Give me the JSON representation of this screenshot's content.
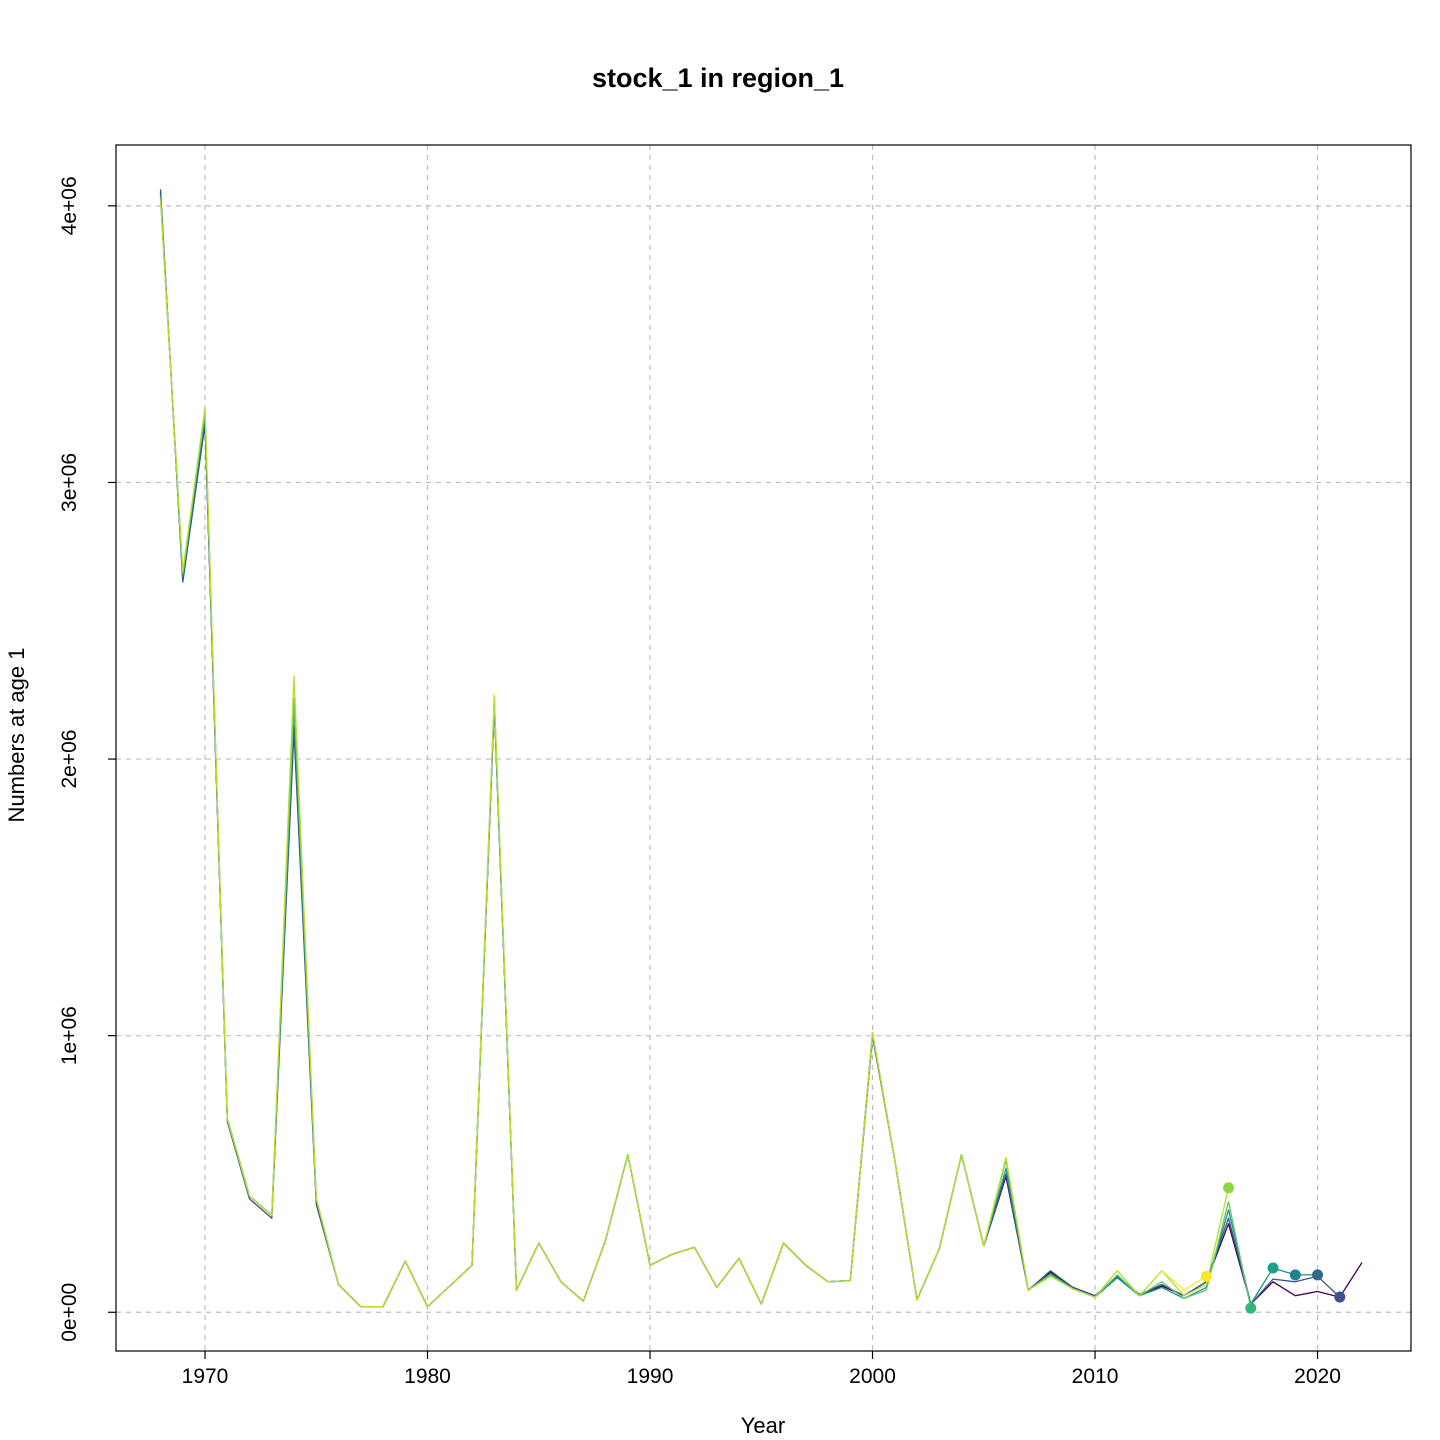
{
  "chart_data": {
    "type": "line",
    "title": "stock_1 in region_1",
    "xlabel": "Year",
    "ylabel": "Numbers at age 1",
    "xlim": [
      1966,
      2024.2
    ],
    "ylim": [
      -140000,
      4220000
    ],
    "xticks": [
      1970,
      1980,
      1990,
      2000,
      2010,
      2020
    ],
    "yticks": [
      0,
      1000000,
      2000000,
      3000000,
      4000000
    ],
    "ytick_labels": [
      "0e+00",
      "1e+06",
      "2e+06",
      "3e+06",
      "4e+06"
    ],
    "grid": true,
    "legend": "none",
    "series": [
      {
        "color": "#440154",
        "x": [
          1968,
          1969,
          1970,
          1971,
          1972,
          1973,
          1974,
          1975,
          1976,
          1977,
          1978,
          1979,
          1980,
          1981,
          1982,
          1983,
          1984,
          1985,
          1986,
          1987,
          1988,
          1989,
          1990,
          1991,
          1992,
          1993,
          1994,
          1995,
          1996,
          1997,
          1998,
          1999,
          2000,
          2001,
          2002,
          2003,
          2004,
          2005,
          2006,
          2007,
          2008,
          2009,
          2010,
          2011,
          2012,
          2013,
          2014,
          2015,
          2016,
          2017,
          2018,
          2019,
          2020,
          2021,
          2022
        ],
        "y": [
          4050000,
          2650000,
          3220000,
          700000,
          420000,
          350000,
          2150000,
          400000,
          100000,
          20000,
          20000,
          185000,
          20000,
          95000,
          170000,
          2200000,
          80000,
          250000,
          110000,
          40000,
          260000,
          570000,
          170000,
          210000,
          235000,
          90000,
          195000,
          30000,
          250000,
          170000,
          110000,
          115000,
          1000000,
          550000,
          45000,
          230000,
          570000,
          240000,
          490000,
          80000,
          145000,
          90000,
          60000,
          130000,
          60000,
          95000,
          60000,
          110000,
          320000,
          30000,
          110000,
          60000,
          75000,
          55000,
          180000
        ]
      },
      {
        "color": "#3b528b",
        "x": [
          1968,
          1969,
          1970,
          1971,
          1972,
          1973,
          1974,
          1975,
          1976,
          1977,
          1978,
          1979,
          1980,
          1981,
          1982,
          1983,
          1984,
          1985,
          1986,
          1987,
          1988,
          1989,
          1990,
          1991,
          1992,
          1993,
          1994,
          1995,
          1996,
          1997,
          1998,
          1999,
          2000,
          2001,
          2002,
          2003,
          2004,
          2005,
          2006,
          2007,
          2008,
          2009,
          2010,
          2011,
          2012,
          2013,
          2014,
          2015,
          2016,
          2017,
          2018,
          2019,
          2020,
          2021
        ],
        "y": [
          4060000,
          2640000,
          3210000,
          690000,
          410000,
          340000,
          2100000,
          390000,
          100000,
          20000,
          20000,
          185000,
          20000,
          95000,
          170000,
          2190000,
          80000,
          250000,
          110000,
          40000,
          260000,
          570000,
          170000,
          210000,
          235000,
          90000,
          195000,
          30000,
          250000,
          170000,
          110000,
          115000,
          1000000,
          550000,
          45000,
          230000,
          570000,
          240000,
          500000,
          80000,
          150000,
          90000,
          60000,
          130000,
          65000,
          100000,
          60000,
          110000,
          340000,
          30000,
          120000,
          110000,
          130000,
          55000
        ]
      },
      {
        "color": "#21908d",
        "x": [
          1968,
          1969,
          1970,
          1971,
          1972,
          1973,
          1974,
          1975,
          1976,
          1977,
          1978,
          1979,
          1980,
          1981,
          1982,
          1983,
          1984,
          1985,
          1986,
          1987,
          1988,
          1989,
          1990,
          1991,
          1992,
          1993,
          1994,
          1995,
          1996,
          1997,
          1998,
          1999,
          2000,
          2001,
          2002,
          2003,
          2004,
          2005,
          2006,
          2007,
          2008,
          2009,
          2010,
          2011,
          2012,
          2013,
          2014,
          2015,
          2016,
          2017,
          2018,
          2019,
          2020
        ],
        "y": [
          4040000,
          2660000,
          3240000,
          700000,
          420000,
          350000,
          2180000,
          410000,
          100000,
          20000,
          20000,
          185000,
          20000,
          95000,
          170000,
          2210000,
          80000,
          250000,
          110000,
          40000,
          260000,
          570000,
          170000,
          210000,
          235000,
          90000,
          195000,
          30000,
          250000,
          170000,
          110000,
          115000,
          1010000,
          550000,
          45000,
          230000,
          570000,
          240000,
          520000,
          80000,
          140000,
          85000,
          55000,
          125000,
          60000,
          90000,
          50000,
          90000,
          370000,
          30000,
          160000,
          135000,
          135000
        ]
      },
      {
        "color": "#5ec962",
        "x": [
          1968,
          1969,
          1970,
          1971,
          1972,
          1973,
          1974,
          1975,
          1976,
          1977,
          1978,
          1979,
          1980,
          1981,
          1982,
          1983,
          1984,
          1985,
          1986,
          1987,
          1988,
          1989,
          1990,
          1991,
          1992,
          1993,
          1994,
          1995,
          1996,
          1997,
          1998,
          1999,
          2000,
          2001,
          2002,
          2003,
          2004,
          2005,
          2006,
          2007,
          2008,
          2009,
          2010,
          2011,
          2012,
          2013,
          2014,
          2015,
          2016,
          2017
        ],
        "y": [
          4030000,
          2670000,
          3260000,
          700000,
          420000,
          350000,
          2220000,
          410000,
          100000,
          20000,
          20000,
          185000,
          20000,
          95000,
          170000,
          2220000,
          80000,
          250000,
          110000,
          40000,
          260000,
          570000,
          170000,
          210000,
          235000,
          90000,
          195000,
          30000,
          250000,
          170000,
          110000,
          115000,
          1010000,
          550000,
          45000,
          230000,
          570000,
          240000,
          550000,
          80000,
          135000,
          85000,
          55000,
          135000,
          60000,
          110000,
          50000,
          80000,
          400000,
          15000
        ]
      },
      {
        "color": "#b5de2b",
        "x": [
          1968,
          1969,
          1970,
          1971,
          1972,
          1973,
          1974,
          1975,
          1976,
          1977,
          1978,
          1979,
          1980,
          1981,
          1982,
          1983,
          1984,
          1985,
          1986,
          1987,
          1988,
          1989,
          1990,
          1991,
          1992,
          1993,
          1994,
          1995,
          1996,
          1997,
          1998,
          1999,
          2000,
          2001,
          2002,
          2003,
          2004,
          2005,
          2006,
          2007,
          2008,
          2009,
          2010,
          2011,
          2012,
          2013,
          2014,
          2015,
          2016
        ],
        "y": [
          4020000,
          2680000,
          3270000,
          700000,
          420000,
          350000,
          2300000,
          410000,
          100000,
          20000,
          20000,
          185000,
          20000,
          95000,
          170000,
          2230000,
          80000,
          250000,
          110000,
          40000,
          260000,
          570000,
          170000,
          210000,
          235000,
          90000,
          195000,
          30000,
          250000,
          170000,
          110000,
          115000,
          1010000,
          550000,
          45000,
          230000,
          570000,
          240000,
          560000,
          80000,
          130000,
          85000,
          55000,
          150000,
          60000,
          150000,
          60000,
          100000,
          450000
        ]
      },
      {
        "color": "#fde725",
        "x": [
          2013,
          2014,
          2015
        ],
        "y": [
          150000,
          80000,
          130000
        ]
      }
    ],
    "points": [
      {
        "x": 2015,
        "y": 130000,
        "color": "#fde725"
      },
      {
        "x": 2016,
        "y": 450000,
        "color": "#8fd744"
      },
      {
        "x": 2017,
        "y": 15000,
        "color": "#35b779"
      },
      {
        "x": 2018,
        "y": 160000,
        "color": "#1f9e89"
      },
      {
        "x": 2019,
        "y": 135000,
        "color": "#26828e"
      },
      {
        "x": 2020,
        "y": 135000,
        "color": "#31688e"
      },
      {
        "x": 2021,
        "y": 55000,
        "color": "#3b528b"
      }
    ]
  }
}
